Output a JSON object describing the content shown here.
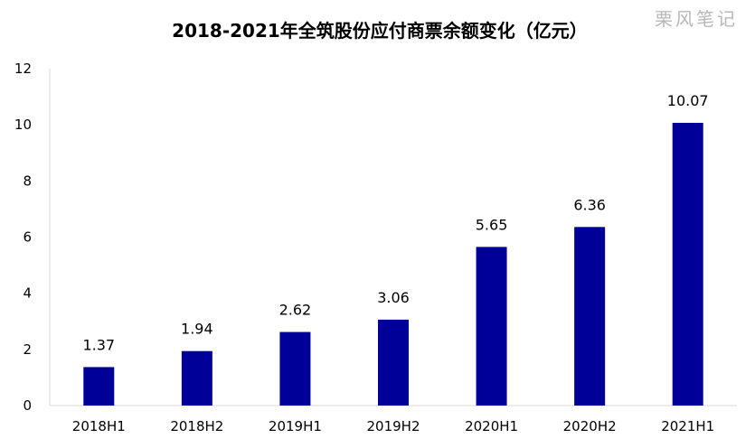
{
  "chart_data": {
    "type": "bar",
    "title": "2018-2021年全筑股份应付商票余额变化（亿元）",
    "watermark": "栗风笔记",
    "categories": [
      "2018H1",
      "2018H2",
      "2019H1",
      "2019H2",
      "2020H1",
      "2020H2",
      "2021H1"
    ],
    "values": [
      1.37,
      1.94,
      2.62,
      3.06,
      5.65,
      6.36,
      10.07
    ],
    "data_labels": [
      "1.37",
      "1.94",
      "2.62",
      "3.06",
      "5.65",
      "6.36",
      "10.07"
    ],
    "ylim": [
      0,
      12
    ],
    "yticks": [
      "0",
      "2",
      "4",
      "6",
      "8",
      "10",
      "12"
    ],
    "xlabel": "",
    "ylabel": "",
    "grid": false,
    "legend": "none",
    "bar_color": "#000099"
  }
}
